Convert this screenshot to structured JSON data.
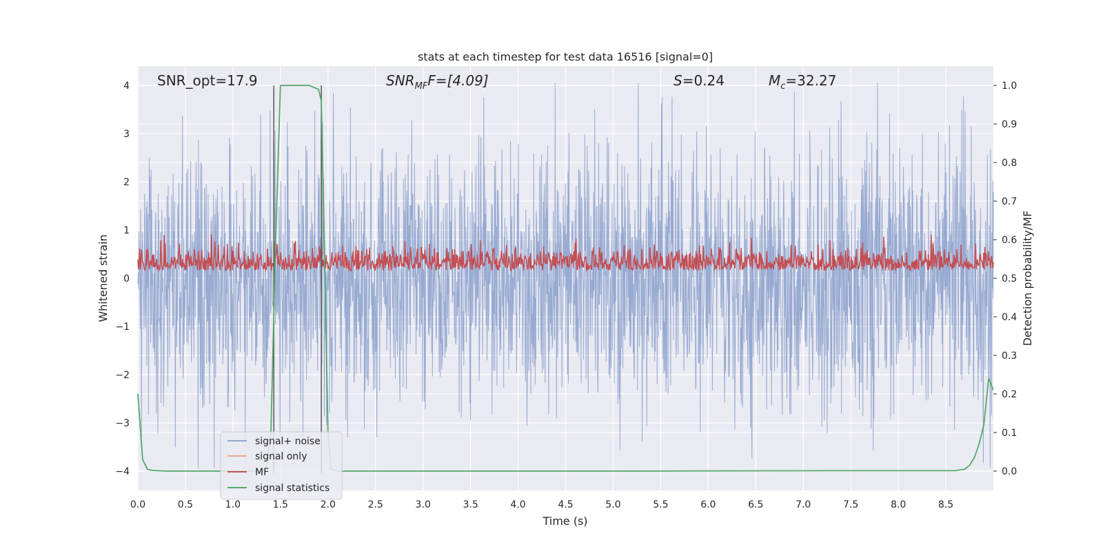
{
  "chart_data": {
    "type": "line",
    "title": "stats at each timestep for test data 16516 [signal=0]",
    "xlabel": "Time (s)",
    "ylabel": "Whitened strain",
    "ylabel_right": "Detection probability/MF",
    "xlim": [
      0.0,
      9.0
    ],
    "ylim": [
      -4.4,
      4.4
    ],
    "ylim_right": [
      -0.05,
      1.05
    ],
    "xticks": [
      "0.0",
      "0.5",
      "1.0",
      "1.5",
      "2.0",
      "2.5",
      "3.0",
      "3.5",
      "4.0",
      "4.5",
      "5.0",
      "5.5",
      "6.0",
      "6.5",
      "7.0",
      "7.5",
      "8.0",
      "8.5"
    ],
    "yticks": [
      "4",
      "3",
      "2",
      "1",
      "0",
      "−1",
      "−2",
      "−3",
      "−4"
    ],
    "yticks_right": [
      "1.0",
      "0.9",
      "0.8",
      "0.7",
      "0.6",
      "0.5",
      "0.4",
      "0.3",
      "0.2",
      "0.1",
      "0.0"
    ],
    "annotations": {
      "snr_opt": "SNR_opt=17.9",
      "snr_mf_main": "SNR",
      "snr_mf_sub": "MF",
      "snr_mf_value": "F=[4.09]",
      "s_sym": "S",
      "s_value": "=0.24",
      "mc_main": "M",
      "mc_sub": "c",
      "mc_value": "=32.27"
    },
    "vlines": [
      1.43,
      1.93
    ],
    "series": [
      {
        "name": "signal+ noise",
        "axis": "left",
        "color": "#92a6cf",
        "description": "whitened strain noise, approx. gaussian with std ~1 spanning roughly -4 to 4",
        "amplitude_std": 1.0
      },
      {
        "name": "signal only",
        "axis": "left",
        "color": "#e8a98c",
        "values": []
      },
      {
        "name": "MF",
        "axis": "right",
        "color": "#c44e52",
        "description": "matched-filter output fluctuating between ~0.5 and ~0.62",
        "mean": 0.54
      },
      {
        "name": "signal statistics",
        "axis": "right",
        "color": "#55a868",
        "x": [
          0.0,
          0.05,
          0.1,
          0.15,
          0.2,
          0.3,
          1.3,
          1.35,
          1.4,
          1.45,
          1.5,
          1.6,
          1.7,
          1.8,
          1.85,
          1.9,
          1.93,
          1.97,
          2.0,
          2.03,
          2.1,
          5.0,
          7.3,
          8.6,
          8.7,
          8.75,
          8.8,
          8.85,
          8.9,
          8.95,
          9.0
        ],
        "values": [
          0.2,
          0.03,
          0.005,
          0.002,
          0.001,
          0.0,
          0.0,
          0.01,
          0.1,
          0.6,
          1.0,
          1.0,
          1.0,
          1.0,
          0.995,
          0.99,
          0.96,
          0.5,
          0.1,
          0.005,
          0.0,
          0.0,
          0.001,
          0.001,
          0.005,
          0.015,
          0.035,
          0.07,
          0.12,
          0.24,
          0.21
        ]
      }
    ],
    "legend": [
      "signal+ noise",
      "signal only",
      "MF",
      "signal statistics"
    ],
    "legend_position": "lower-left",
    "grid": true
  }
}
